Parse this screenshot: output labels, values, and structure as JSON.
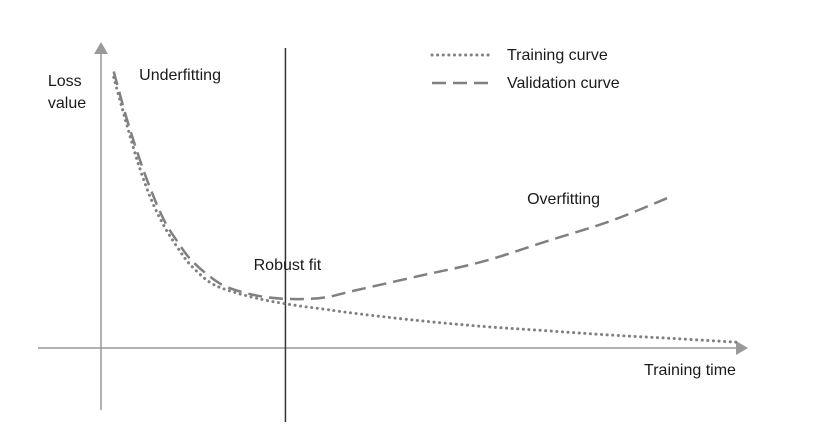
{
  "chart_data": {
    "type": "line",
    "title": "",
    "xlabel": "Training time",
    "ylabel_lines": [
      "Loss",
      "value"
    ],
    "x_range": [
      0,
      1
    ],
    "y_range": [
      0,
      1
    ],
    "grid": false,
    "legend_position": "top-right",
    "colors": {
      "axis": "#999999",
      "series": "#808080",
      "divider": "#333333"
    },
    "series": [
      {
        "name": "Training curve",
        "style": "dotted",
        "points": [
          [
            0.02,
            0.94
          ],
          [
            0.04,
            0.78
          ],
          [
            0.06,
            0.63
          ],
          [
            0.08,
            0.51
          ],
          [
            0.1,
            0.42
          ],
          [
            0.12,
            0.35
          ],
          [
            0.14,
            0.29
          ],
          [
            0.17,
            0.23
          ],
          [
            0.2,
            0.2
          ],
          [
            0.25,
            0.17
          ],
          [
            0.3,
            0.15
          ],
          [
            0.35,
            0.135
          ],
          [
            0.4,
            0.12
          ],
          [
            0.5,
            0.095
          ],
          [
            0.6,
            0.075
          ],
          [
            0.7,
            0.06
          ],
          [
            0.8,
            0.045
          ],
          [
            0.9,
            0.033
          ],
          [
            1.0,
            0.02
          ]
        ]
      },
      {
        "name": "Validation curve",
        "style": "dashed",
        "points": [
          [
            0.02,
            0.96
          ],
          [
            0.04,
            0.8
          ],
          [
            0.06,
            0.66
          ],
          [
            0.08,
            0.54
          ],
          [
            0.1,
            0.44
          ],
          [
            0.12,
            0.37
          ],
          [
            0.14,
            0.31
          ],
          [
            0.17,
            0.25
          ],
          [
            0.2,
            0.21
          ],
          [
            0.25,
            0.18
          ],
          [
            0.3,
            0.17
          ],
          [
            0.35,
            0.175
          ],
          [
            0.4,
            0.2
          ],
          [
            0.5,
            0.25
          ],
          [
            0.6,
            0.3
          ],
          [
            0.7,
            0.37
          ],
          [
            0.8,
            0.44
          ],
          [
            0.89,
            0.52
          ]
        ]
      }
    ],
    "divider_x": 0.29,
    "annotations": [
      {
        "text": "Underfitting",
        "x": 0.06,
        "y": 0.93
      },
      {
        "text": "Robust fit",
        "x": 0.24,
        "y": 0.27
      },
      {
        "text": "Overfitting",
        "x": 0.67,
        "y": 0.5
      }
    ]
  }
}
